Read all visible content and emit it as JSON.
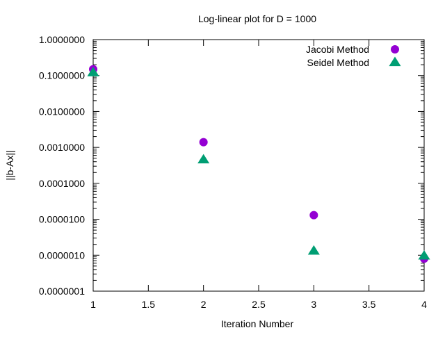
{
  "chart_data": {
    "type": "scatter",
    "title": "Log-linear plot for D = 1000",
    "xlabel": "Iteration Number",
    "ylabel": "||b-Ax||",
    "x_range": [
      1,
      4
    ],
    "y_range": [
      1e-07,
      1
    ],
    "y_scale": "log",
    "x_ticks": [
      "1",
      "1.5",
      "2",
      "2.5",
      "3",
      "3.5",
      "4"
    ],
    "y_ticks": [
      "1.0000000",
      "0.1000000",
      "0.0100000",
      "0.0010000",
      "0.0001000",
      "0.0000100",
      "0.0000010",
      "0.0000001"
    ],
    "grid": false,
    "legend_position": "top-right",
    "series": [
      {
        "name": "Jacobi Method",
        "marker": "circle",
        "color": "#9400d3",
        "x": [
          1,
          2,
          3,
          4
        ],
        "y": [
          0.15,
          0.0014,
          1.3e-05,
          8e-07
        ]
      },
      {
        "name": "Seidel Method",
        "marker": "triangle",
        "color": "#009e73",
        "x": [
          1,
          2,
          3,
          4
        ],
        "y": [
          0.12,
          0.00045,
          1.3e-06,
          9.5e-07
        ]
      }
    ]
  }
}
